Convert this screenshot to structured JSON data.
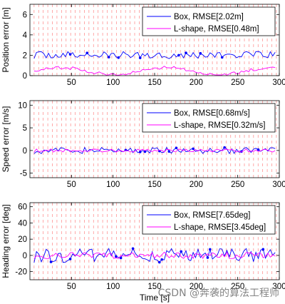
{
  "figure": {
    "xlabel": "Time [s]",
    "watermark": "CSDN @奔袭的算法工程师"
  },
  "chart_data": [
    {
      "type": "line",
      "ylabel": "Position error [m]",
      "xlim": [
        0,
        300
      ],
      "ylim": [
        0,
        7
      ],
      "xticks": [
        50,
        100,
        150,
        200,
        250,
        300
      ],
      "yticks": [
        0,
        2,
        4,
        6
      ],
      "grid": false,
      "legend_position": "top-right",
      "series": [
        {
          "name": "Box, RMSE[2.02m]",
          "color": "#0000ff",
          "baseline": 2.02,
          "jitter": 0.35,
          "samples": 100,
          "dots": 10
        },
        {
          "name": "L-shape, RMSE[0.48m]",
          "color": "#ff00ff",
          "baseline": 0.45,
          "jitter": 0.3,
          "samples": 100,
          "dots": 0
        }
      ],
      "vertical_markers": {
        "color": "#ff6666",
        "x_start": 5,
        "x_step": 5.5
      }
    },
    {
      "type": "line",
      "ylabel": "Speed error [m/s]",
      "xlim": [
        0,
        300
      ],
      "ylim": [
        -6,
        11
      ],
      "xticks": [
        50,
        100,
        150,
        200,
        250,
        300
      ],
      "yticks": [
        -5,
        0,
        5,
        10
      ],
      "grid": false,
      "legend_position": "top-right",
      "series": [
        {
          "name": "Box, RMSE[0.68m/s]",
          "color": "#0000ff",
          "baseline": 0,
          "jitter": 0.7,
          "samples": 100,
          "dots": 10
        },
        {
          "name": "L-shape, RMSE[0.32m/s]",
          "color": "#ff00ff",
          "baseline": 0,
          "jitter": 0.35,
          "samples": 100,
          "dots": 0
        }
      ],
      "vertical_markers": {
        "color": "#ff6666",
        "x_start": 5,
        "x_step": 5.5
      }
    },
    {
      "type": "line",
      "ylabel": "Heading error [deg]",
      "xlim": [
        0,
        300
      ],
      "ylim": [
        -30,
        65
      ],
      "xticks": [
        50,
        100,
        150,
        200,
        250,
        300
      ],
      "yticks": [
        -20,
        0,
        20,
        40,
        60
      ],
      "grid": false,
      "legend_position": "top-right",
      "series": [
        {
          "name": "Box, RMSE[7.65deg]",
          "color": "#0000ff",
          "baseline": 0,
          "jitter": 9,
          "samples": 100,
          "dots": 12
        },
        {
          "name": "L-shape, RMSE[3.45deg]",
          "color": "#ff00ff",
          "baseline": 0,
          "jitter": 4,
          "samples": 100,
          "dots": 0
        }
      ],
      "vertical_markers": {
        "color": "#ff6666",
        "x_start": 5,
        "x_step": 5.5
      }
    }
  ]
}
